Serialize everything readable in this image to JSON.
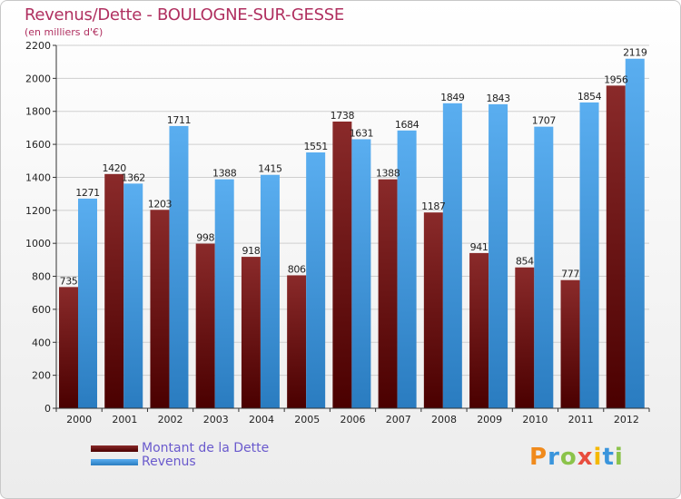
{
  "chart_data": {
    "type": "bar",
    "title": "Revenus/Dette - BOULOGNE-SUR-GESSE",
    "subtitle": "(en milliers d'€)",
    "categories": [
      "2000",
      "2001",
      "2002",
      "2003",
      "2004",
      "2005",
      "2006",
      "2007",
      "2008",
      "2009",
      "2010",
      "2011",
      "2012"
    ],
    "series": [
      {
        "name": "Montant de la Dette",
        "color": "#7a1a1a",
        "values": [
          735,
          1420,
          1203,
          998,
          918,
          806,
          1738,
          1388,
          1187,
          941,
          854,
          777,
          1956
        ]
      },
      {
        "name": "Revenus",
        "color": "#3a95dc",
        "values": [
          1271,
          1362,
          1711,
          1388,
          1415,
          1551,
          1631,
          1684,
          1849,
          1843,
          1707,
          1854,
          2119
        ]
      }
    ],
    "yticks": [
      0,
      200,
      400,
      600,
      800,
      1000,
      1200,
      1400,
      1600,
      1800,
      2000,
      2200
    ],
    "ylim": [
      0,
      2200
    ],
    "grid": true,
    "legend": "bottom-left"
  },
  "branding": {
    "logo_text": "Proxiti"
  }
}
